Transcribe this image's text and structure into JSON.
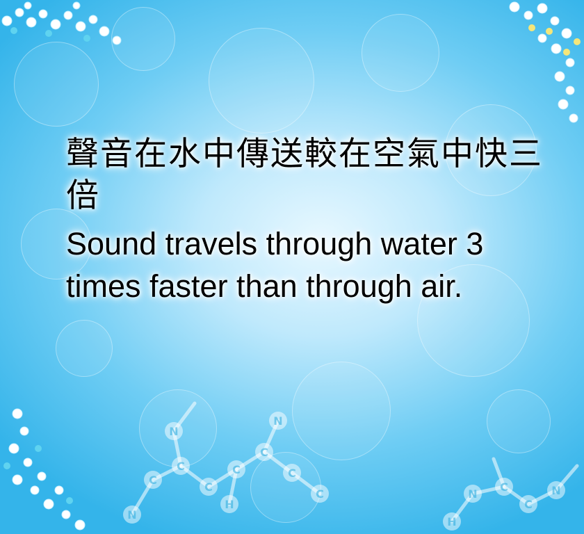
{
  "slide": {
    "chinese_text": "聲音在水中傳送較在空氣中快三倍",
    "english_text": "Sound travels through water 3 times faster than through air."
  },
  "decorations": {
    "atom_labels": [
      "N",
      "C",
      "C",
      "N",
      "C",
      "C",
      "H",
      "C",
      "N",
      "C",
      "C",
      "H",
      "N",
      "C",
      "C",
      "N"
    ]
  },
  "colors": {
    "background_center": "#e8f8ff",
    "background_edge": "#34b4ea",
    "text": "#000000"
  }
}
